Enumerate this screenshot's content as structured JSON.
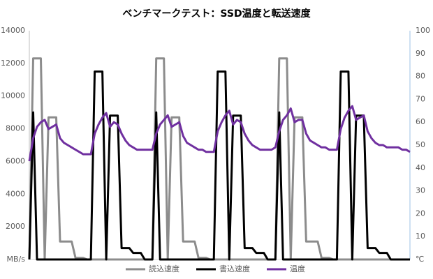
{
  "chart_data": {
    "type": "line",
    "title": "ベンチマークテスト：SSD温度と転送速度",
    "categories": [
      null,
      null,
      null,
      null,
      null,
      null,
      null,
      null,
      null,
      null,
      null,
      null,
      null,
      null,
      null,
      null,
      null,
      null,
      null,
      null,
      null,
      null,
      null,
      null,
      null,
      null,
      null,
      null,
      null,
      null,
      null,
      null,
      null,
      null,
      null,
      null,
      null,
      null,
      null,
      null,
      null,
      null,
      null,
      null,
      null,
      null,
      null,
      null,
      null,
      null,
      null,
      null,
      null,
      null,
      null,
      null,
      null,
      null,
      null,
      null,
      null,
      null,
      null,
      null,
      null,
      null,
      null,
      null,
      null,
      null,
      null,
      null,
      null,
      null,
      null,
      null,
      null,
      null,
      null,
      null,
      null,
      null,
      null,
      null,
      null,
      null,
      null,
      null,
      null,
      null,
      null,
      null,
      null,
      null,
      null,
      null,
      null,
      null,
      null,
      null
    ],
    "ylim": [
      0,
      14000
    ],
    "yticks": [
      {
        "value": 0,
        "label": "MB/s"
      },
      2000,
      4000,
      6000,
      8000,
      10000,
      12000,
      14000
    ],
    "y2lim": [
      0,
      100
    ],
    "y2ticks": [
      {
        "value": 0,
        "label": "℃"
      },
      10,
      20,
      30,
      40,
      50,
      60,
      70,
      80,
      90,
      100
    ],
    "grid": false,
    "legend": "bottom",
    "series": [
      {
        "name": "読込速度",
        "color": "#8c8c8c",
        "values": [
          0,
          12300,
          12300,
          12300,
          0,
          8700,
          8700,
          8700,
          1100,
          1100,
          1100,
          1100,
          100,
          100,
          100,
          0,
          0,
          0,
          0,
          0,
          0,
          0,
          0,
          0,
          0,
          0,
          0,
          0,
          0,
          0,
          0,
          0,
          0,
          12300,
          12300,
          12300,
          0,
          8700,
          8700,
          8700,
          1100,
          1100,
          1100,
          1100,
          100,
          100,
          100,
          0,
          0,
          0,
          0,
          0,
          0,
          0,
          0,
          0,
          0,
          0,
          0,
          0,
          0,
          0,
          0,
          0,
          0,
          12300,
          12300,
          12300,
          0,
          8700,
          8700,
          8700,
          1100,
          1100,
          1100,
          1100,
          100,
          100,
          100,
          0,
          0,
          0,
          0,
          0,
          0,
          0,
          0,
          0,
          0,
          0,
          0,
          0,
          0,
          0,
          0,
          0,
          0,
          0,
          0,
          0
        ]
      },
      {
        "name": "書込速度",
        "color": "#000000",
        "values": [
          0,
          9000,
          0,
          0,
          0,
          0,
          0,
          0,
          0,
          0,
          0,
          0,
          0,
          0,
          0,
          0,
          0,
          11500,
          11500,
          11500,
          0,
          8800,
          8800,
          8800,
          700,
          700,
          700,
          400,
          400,
          400,
          0,
          0,
          0,
          9000,
          0,
          0,
          0,
          0,
          0,
          0,
          0,
          0,
          0,
          0,
          0,
          0,
          0,
          0,
          0,
          11500,
          11500,
          11500,
          0,
          8800,
          8800,
          8800,
          700,
          700,
          700,
          400,
          400,
          400,
          0,
          0,
          0,
          9000,
          0,
          0,
          0,
          0,
          0,
          0,
          0,
          0,
          0,
          0,
          0,
          0,
          0,
          0,
          0,
          11500,
          11500,
          11500,
          0,
          8800,
          8800,
          8800,
          700,
          700,
          700,
          400,
          400,
          400,
          0,
          0,
          0,
          0,
          0,
          0
        ]
      },
      {
        "name": "温度",
        "color": "#7030a0",
        "axis": "y2",
        "values": [
          43,
          53,
          58,
          60,
          61,
          57,
          58,
          59,
          53,
          51,
          50,
          49,
          48,
          47,
          46,
          46,
          46,
          55,
          59,
          62,
          64,
          58,
          60,
          59,
          55,
          52,
          50,
          49,
          48,
          48,
          48,
          48,
          48,
          55,
          59,
          61,
          63,
          58,
          59,
          60,
          54,
          51,
          50,
          49,
          48,
          48,
          47,
          47,
          47,
          56,
          60,
          63,
          65,
          59,
          61,
          60,
          55,
          52,
          50,
          49,
          48,
          48,
          48,
          48,
          49,
          56,
          61,
          63,
          66,
          60,
          61,
          61,
          55,
          52,
          51,
          50,
          49,
          49,
          48,
          48,
          48,
          57,
          62,
          65,
          67,
          61,
          62,
          63,
          56,
          53,
          51,
          50,
          50,
          49,
          49,
          49,
          49,
          48,
          48,
          47
        ]
      }
    ]
  }
}
